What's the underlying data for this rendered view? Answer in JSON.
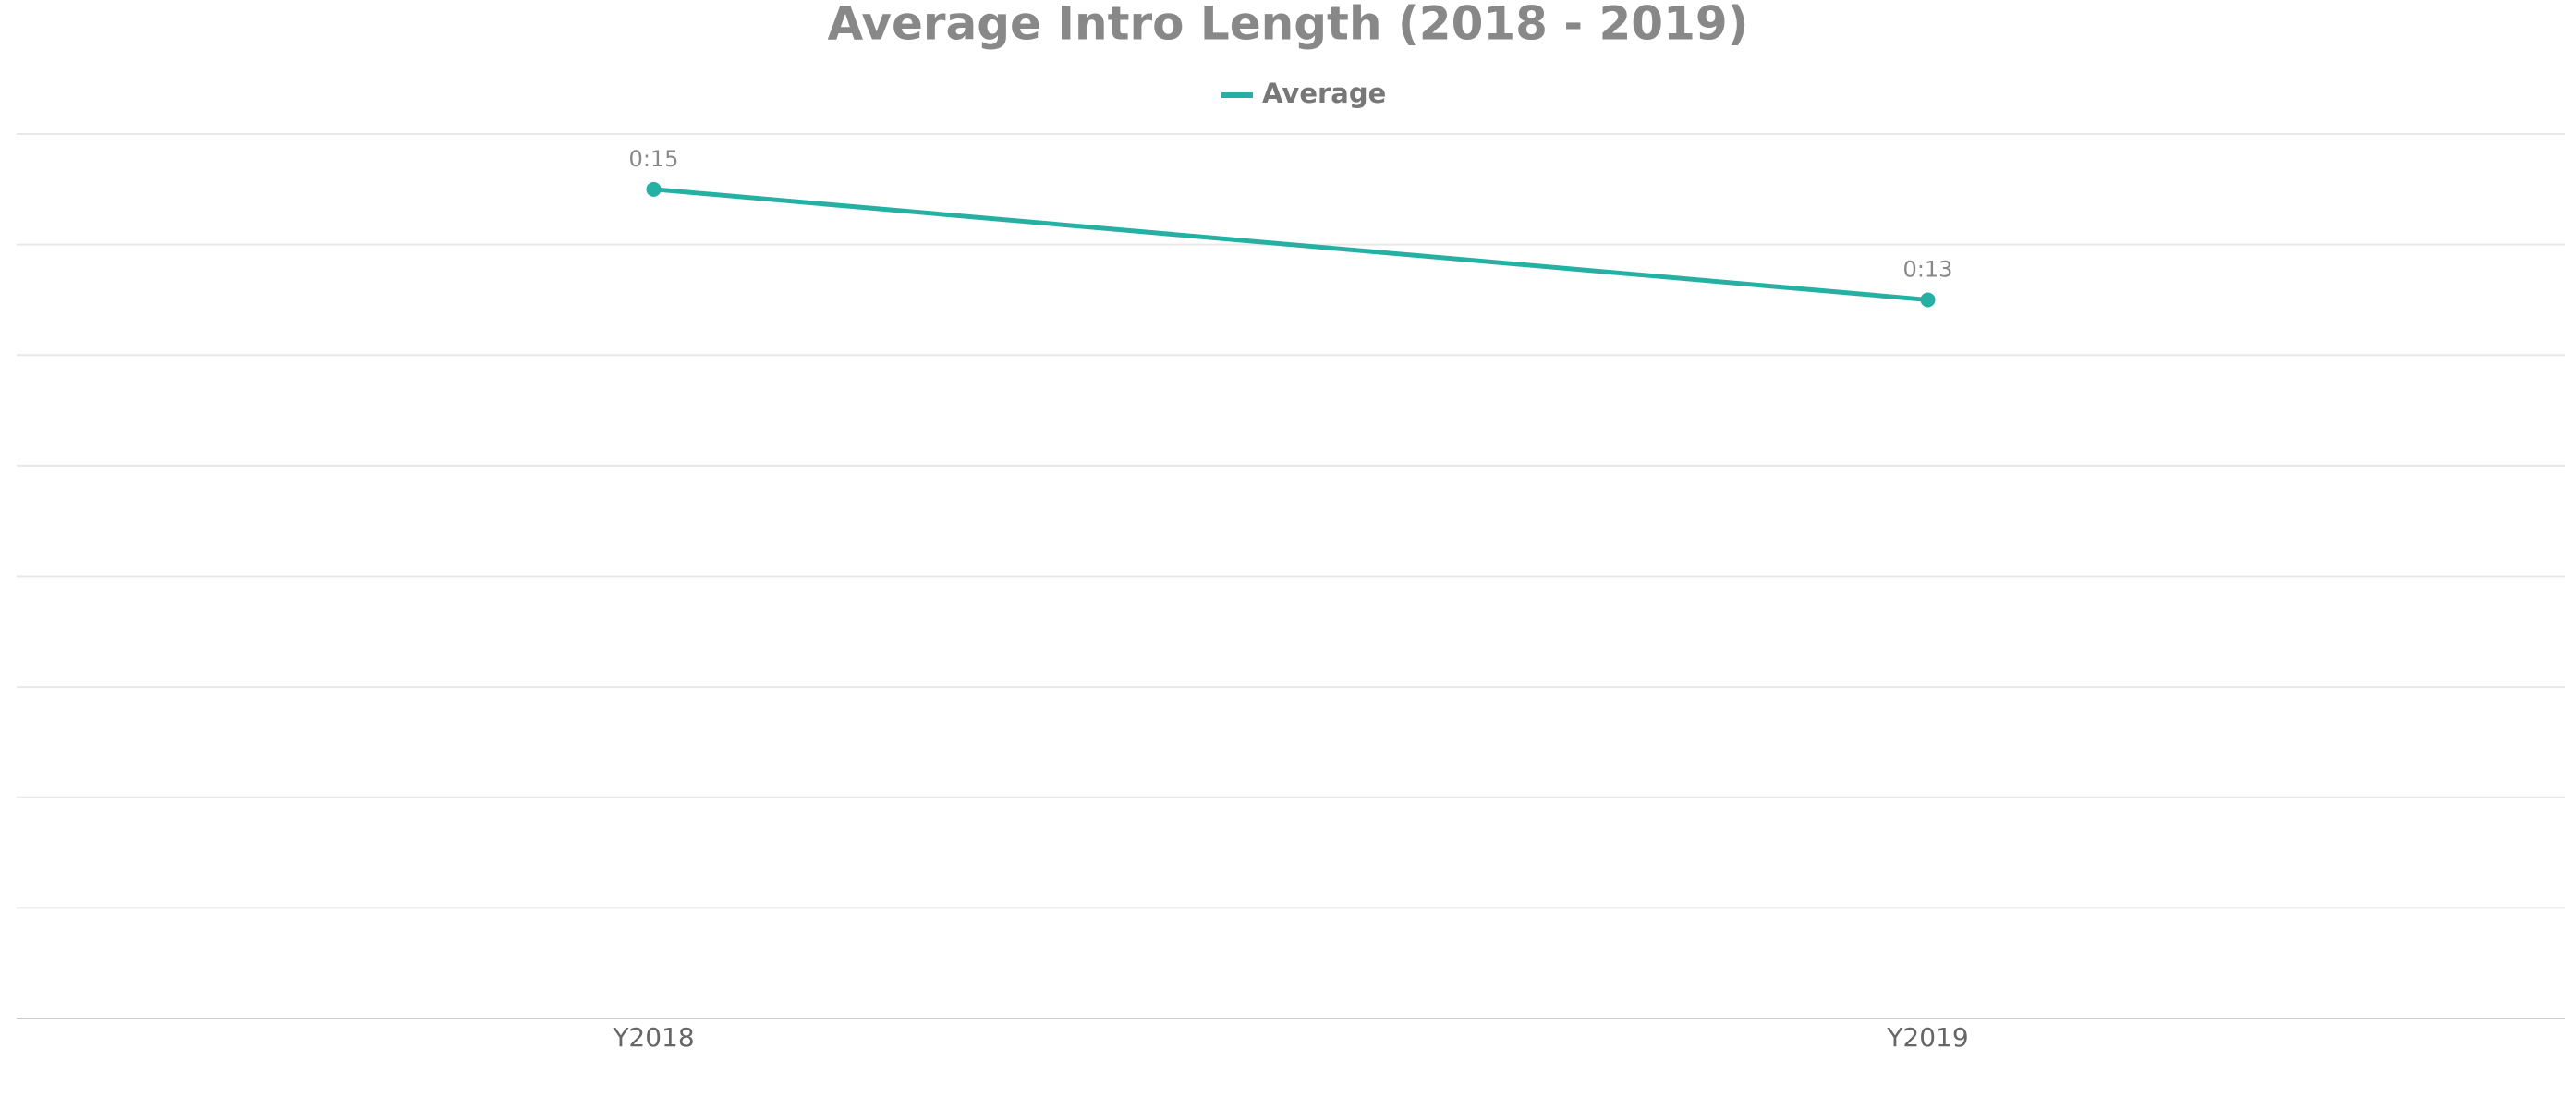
{
  "chart_data": {
    "type": "line",
    "title": "Average Intro Length (2018 - 2019)",
    "categories": [
      "Y2018",
      "Y2019"
    ],
    "series": [
      {
        "name": "Average",
        "color": "#26b0a4",
        "values": [
          15,
          13
        ],
        "value_labels": [
          "0:15",
          "0:13"
        ]
      }
    ],
    "ylim": [
      0,
      16
    ],
    "yticks": [
      0,
      2,
      4,
      6,
      8,
      10,
      12,
      14,
      16
    ],
    "grid": true,
    "legend": "top"
  }
}
